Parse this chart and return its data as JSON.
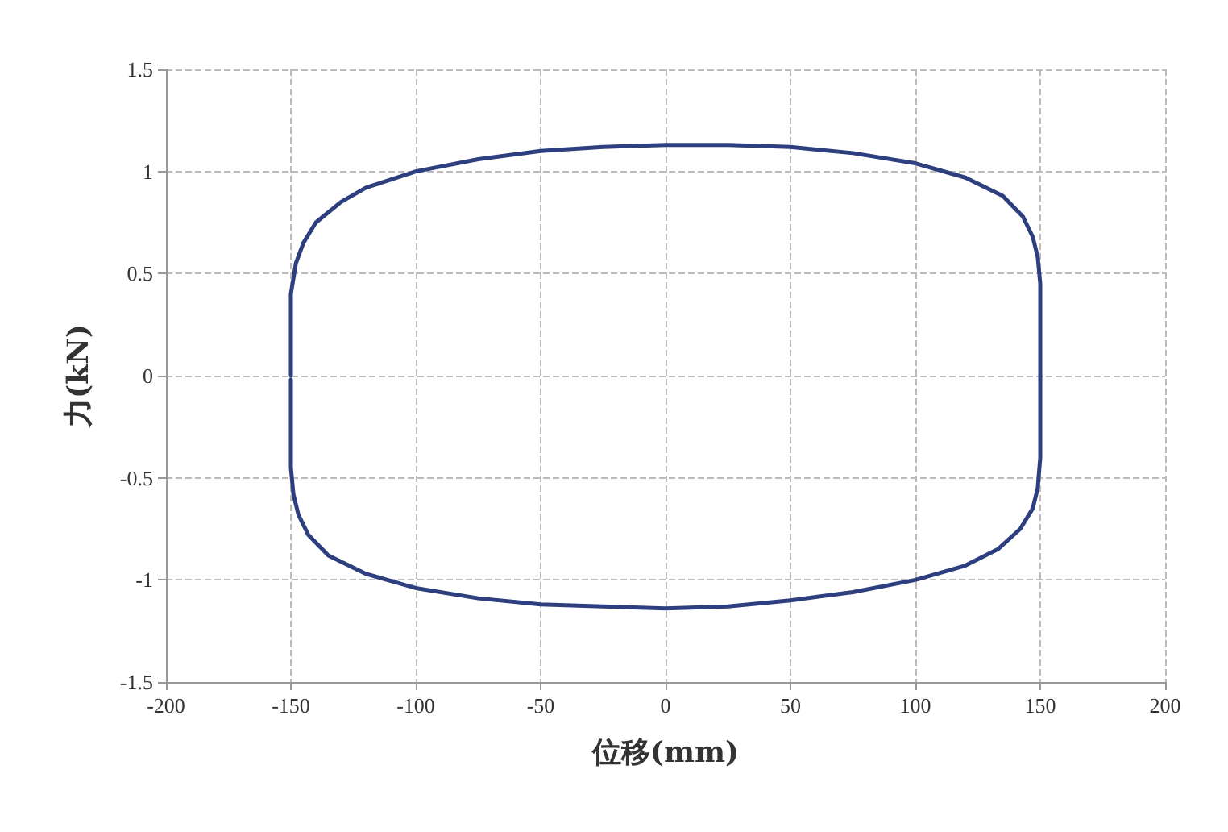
{
  "chart_data": {
    "type": "line",
    "xlabel": "位移(mm)",
    "ylabel": "力(kN)",
    "xlim": [
      -200,
      200
    ],
    "xticks": [
      -200,
      -150,
      -100,
      -50,
      0,
      50,
      100,
      150,
      200
    ],
    "ylim": [
      -1.5,
      1.5
    ],
    "yticks": [
      -1.5,
      -1,
      -0.5,
      0,
      0.5,
      1,
      1.5
    ],
    "grid": true,
    "marker": "none",
    "line_style": "solid",
    "series": [
      {
        "color": "#2e3f7f",
        "x": [
          -150,
          -150,
          -148,
          -145,
          -140,
          -130,
          -120,
          -100,
          -75,
          -50,
          -25,
          0,
          25,
          50,
          75,
          100,
          120,
          135,
          143,
          147,
          149,
          150,
          150,
          150,
          149,
          147,
          142,
          133,
          120,
          100,
          75,
          50,
          25,
          0,
          -25,
          -50,
          -75,
          -100,
          -120,
          -135,
          -143,
          -147,
          -149,
          -150,
          -150
        ],
        "values": [
          0,
          0.4,
          0.55,
          0.65,
          0.75,
          0.85,
          0.92,
          1,
          1.06,
          1.1,
          1.12,
          1.13,
          1.13,
          1.12,
          1.09,
          1.04,
          0.97,
          0.88,
          0.78,
          0.68,
          0.58,
          0.45,
          0,
          -0.4,
          -0.55,
          -0.65,
          -0.75,
          -0.85,
          -0.93,
          -1,
          -1.06,
          -1.1,
          -1.13,
          -1.14,
          -1.13,
          -1.12,
          -1.09,
          -1.04,
          -0.97,
          -0.88,
          -0.78,
          -0.68,
          -0.58,
          -0.45,
          -0.02
        ]
      }
    ]
  }
}
